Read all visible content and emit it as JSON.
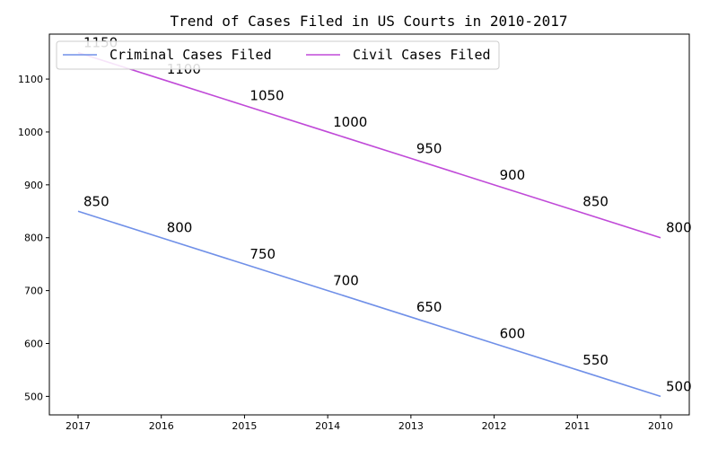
{
  "chart_data": {
    "type": "line",
    "title": "Trend of Cases Filed in US Courts in 2010-2017",
    "xlabel": "",
    "ylabel": "",
    "categories": [
      "2017",
      "2016",
      "2015",
      "2014",
      "2013",
      "2012",
      "2011",
      "2010"
    ],
    "ylim": [
      465,
      1185
    ],
    "yticks": [
      500,
      600,
      700,
      800,
      900,
      1000,
      1100
    ],
    "grid": false,
    "legend_position": "top-left",
    "series": [
      {
        "name": "Criminal Cases Filed",
        "color": "#7090e8",
        "values": [
          850,
          800,
          750,
          700,
          650,
          600,
          550,
          500
        ]
      },
      {
        "name": "Civil Cases Filed",
        "color": "#c04ad8",
        "values": [
          1150,
          1100,
          1050,
          1000,
          950,
          900,
          850,
          800
        ]
      }
    ]
  }
}
